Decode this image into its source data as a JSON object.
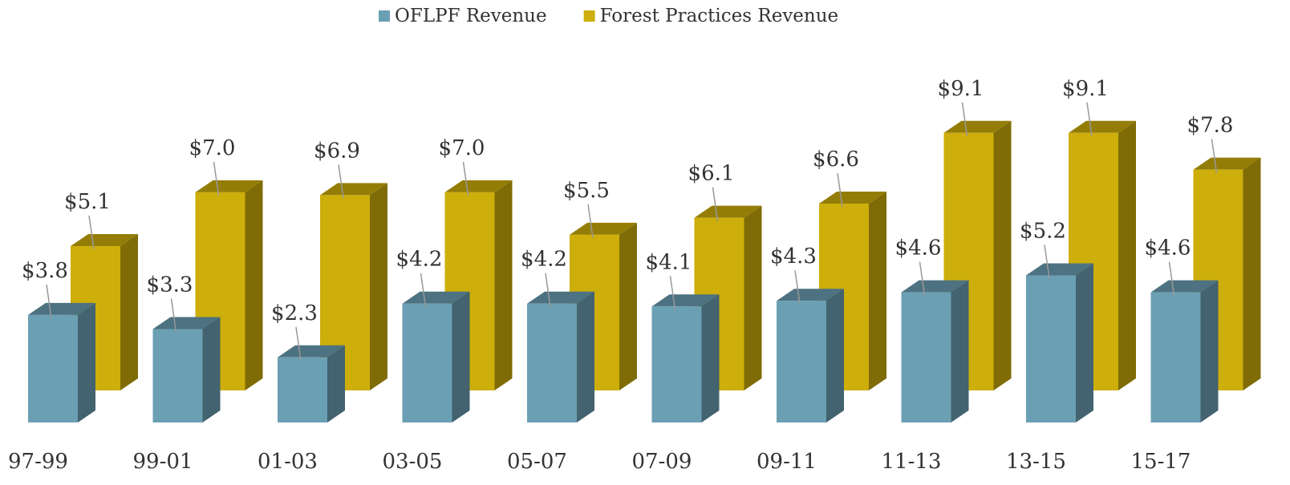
{
  "chart_data": {
    "type": "bar3d",
    "categories": [
      "97-99",
      "99-01",
      "01-03",
      "03-05",
      "05-07",
      "07-09",
      "09-11",
      "11-13",
      "13-15",
      "15-17"
    ],
    "series": [
      {
        "name": "OFLPF Revenue",
        "color": "#6b9fb3",
        "values": [
          3.8,
          3.3,
          2.3,
          4.2,
          4.2,
          4.1,
          4.3,
          4.6,
          5.2,
          4.6
        ],
        "value_labels": [
          "$3.8",
          "$3.3",
          "$2.3",
          "$4.2",
          "$4.2",
          "$4.1",
          "$4.3",
          "$4.6",
          "$5.2",
          "$4.6"
        ]
      },
      {
        "name": "Forest Practices Revenue",
        "color": "#cdae0a",
        "values": [
          5.1,
          7.0,
          6.9,
          7.0,
          5.5,
          6.1,
          6.6,
          9.1,
          9.1,
          7.8
        ],
        "value_labels": [
          "$5.1",
          "$7.0",
          "$6.9",
          "$7.0",
          "$5.5",
          "$6.1",
          "$6.6",
          "$9.1",
          "$9.1",
          "$7.8"
        ]
      }
    ],
    "legend": "top"
  }
}
